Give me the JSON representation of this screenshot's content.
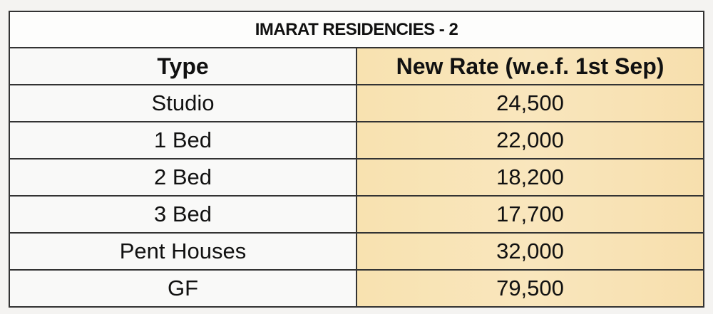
{
  "title": "IMARAT RESIDENCIES - 2",
  "headers": {
    "type": "Type",
    "rate": "New Rate (w.e.f. 1st Sep)"
  },
  "rows": [
    {
      "type": "Studio",
      "rate": "24,500"
    },
    {
      "type": "1 Bed",
      "rate": "22,000"
    },
    {
      "type": "2 Bed",
      "rate": "18,200"
    },
    {
      "type": "3 Bed",
      "rate": "17,700"
    },
    {
      "type": "Pent Houses",
      "rate": "32,000"
    },
    {
      "type": "GF",
      "rate": "79,500"
    }
  ]
}
